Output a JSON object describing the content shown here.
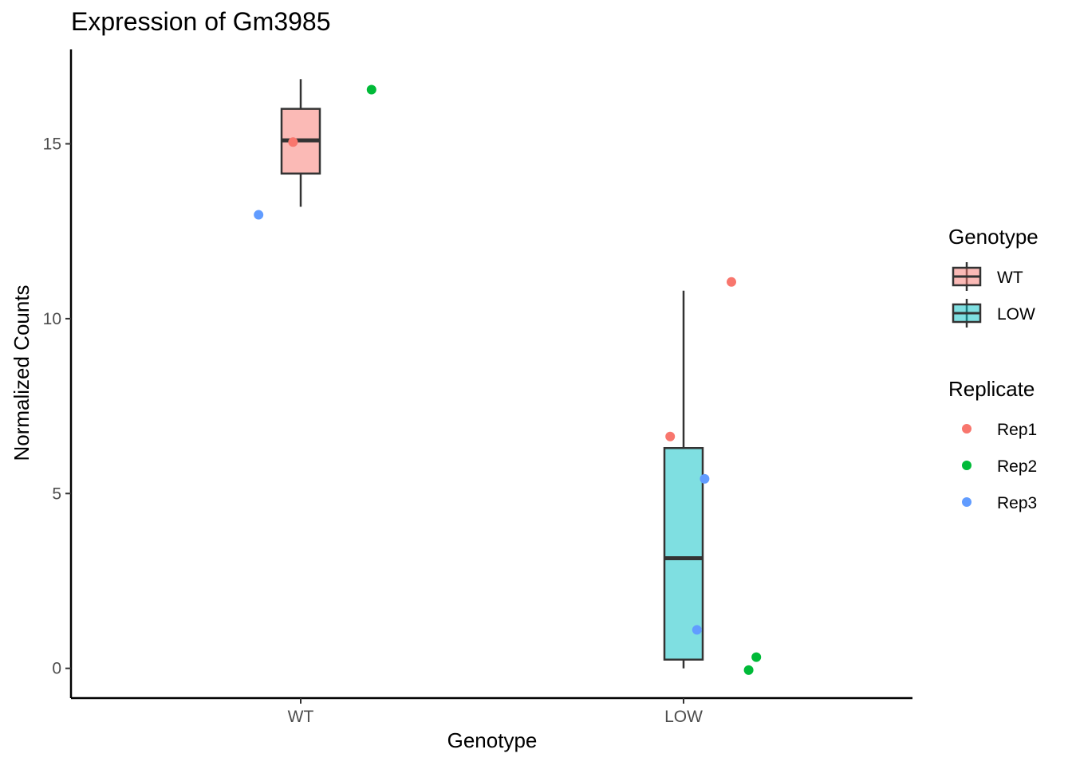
{
  "chart_data": {
    "type": "box",
    "title": "Expression of Gm3985",
    "xlabel": "Genotype",
    "ylabel": "Normalized Counts",
    "categories": [
      "WT",
      "LOW"
    ],
    "ylim": [
      -0.85,
      17.7
    ],
    "yticks": [
      0,
      5,
      10,
      15
    ],
    "grid": false,
    "boxes": [
      {
        "category": "WT",
        "q1": 14.15,
        "median": 15.1,
        "q3": 16.0,
        "lower_whisker": 13.2,
        "upper_whisker": 16.85,
        "fill": "#F8766D"
      },
      {
        "category": "LOW",
        "q1": 0.25,
        "median": 3.15,
        "q3": 6.3,
        "lower_whisker": 0.0,
        "upper_whisker": 10.8,
        "fill": "#00BFC4"
      }
    ],
    "points": [
      {
        "category": "WT",
        "replicate": "Rep1",
        "jitter": -0.04,
        "y": 15.05
      },
      {
        "category": "WT",
        "replicate": "Rep2",
        "jitter": 0.37,
        "y": 16.55
      },
      {
        "category": "WT",
        "replicate": "Rep3",
        "jitter": -0.22,
        "y": 12.97
      },
      {
        "category": "LOW",
        "replicate": "Rep1",
        "jitter": 0.25,
        "y": 11.05
      },
      {
        "category": "LOW",
        "replicate": "Rep1",
        "jitter": -0.07,
        "y": 6.63
      },
      {
        "category": "LOW",
        "replicate": "Rep3",
        "jitter": 0.11,
        "y": 5.42
      },
      {
        "category": "LOW",
        "replicate": "Rep3",
        "jitter": 0.07,
        "y": 1.1
      },
      {
        "category": "LOW",
        "replicate": "Rep2",
        "jitter": 0.38,
        "y": 0.32
      },
      {
        "category": "LOW",
        "replicate": "Rep2",
        "jitter": 0.34,
        "y": -0.05
      }
    ],
    "legends": [
      {
        "title": "Genotype",
        "kind": "box",
        "entries": [
          {
            "label": "WT",
            "color": "#F8766D"
          },
          {
            "label": "LOW",
            "color": "#00BFC4"
          }
        ]
      },
      {
        "title": "Replicate",
        "kind": "point",
        "entries": [
          {
            "label": "Rep1",
            "color": "#F8766D"
          },
          {
            "label": "Rep2",
            "color": "#00BA38"
          },
          {
            "label": "Rep3",
            "color": "#619CFF"
          }
        ]
      }
    ],
    "legend_position": "right"
  }
}
